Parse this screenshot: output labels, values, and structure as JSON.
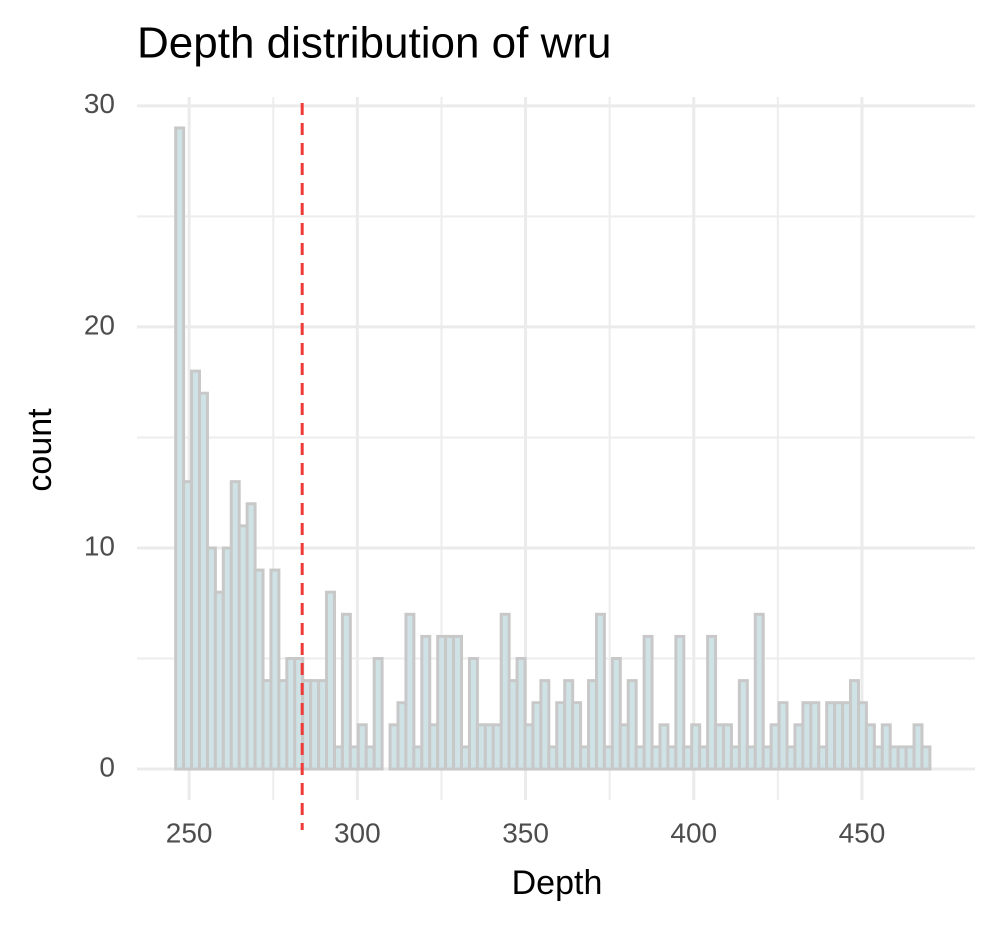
{
  "chart_data": {
    "type": "histogram",
    "title": "Depth distribution of wru",
    "x_label": "Depth",
    "y_label": "count",
    "bins": [
      246,
      248.36,
      250.72,
      253.08,
      255.44,
      257.8,
      260.16,
      262.52,
      264.88,
      267.24,
      269.6,
      271.96,
      274.32,
      276.68,
      279.04,
      281.4,
      283.76,
      286.12,
      288.48,
      290.84,
      293.2,
      295.56,
      297.92,
      300.28,
      302.64,
      305,
      307.36,
      309.72,
      312.08,
      314.44,
      316.8,
      319.16,
      321.52,
      323.88,
      326.24,
      328.6,
      330.96,
      333.32,
      335.68,
      338.04,
      340.4,
      342.76,
      345.12,
      347.48,
      349.84,
      352.2,
      354.56,
      356.92,
      359.28,
      361.64,
      364,
      366.36,
      368.72,
      371.08,
      373.44,
      375.8,
      378.16,
      380.52,
      382.88,
      385.24,
      387.6,
      389.96,
      392.32,
      394.68,
      397.04,
      399.4,
      401.76,
      404.12,
      406.48,
      408.84,
      411.2,
      413.56,
      415.92,
      418.28,
      420.64,
      423,
      425.36,
      427.72,
      430.08,
      432.44,
      434.8,
      437.16,
      439.52,
      441.88,
      444.24,
      446.6,
      448.96,
      451.32,
      453.68,
      456.04,
      458.4,
      460.76,
      463.12,
      465.48,
      467.84,
      470.2
    ],
    "values": [
      29,
      13,
      18,
      17,
      10,
      8,
      10,
      13,
      11,
      12,
      9,
      4,
      9,
      4,
      5,
      5,
      4,
      4,
      4,
      8,
      1,
      7,
      1,
      2,
      1,
      5,
      0,
      2,
      3,
      7,
      1,
      6,
      2,
      6,
      6,
      6,
      1,
      5,
      2,
      2,
      2,
      7,
      4,
      5,
      2,
      3,
      4,
      1,
      3,
      4,
      3,
      1,
      4,
      7,
      1,
      5,
      2,
      4,
      1,
      6,
      1,
      2,
      1,
      6,
      1,
      2,
      1,
      6,
      2,
      2,
      1,
      4,
      1,
      7,
      1,
      2,
      3,
      1,
      2,
      3,
      3,
      1,
      3,
      3,
      3,
      4,
      3,
      2,
      1,
      2,
      1,
      1,
      1,
      2,
      1
    ],
    "color": "#cfe3e6",
    "edge_color": "#c8c8c8",
    "vline": 283.6,
    "vline_color": "#f03a3a",
    "xlim": [
      234.5,
      483.6
    ],
    "xticks": [
      250,
      300,
      350,
      400,
      450
    ],
    "ylim": [
      -1.4,
      30.4
    ],
    "yticks": [
      0,
      10,
      20,
      30
    ],
    "grid": true
  }
}
